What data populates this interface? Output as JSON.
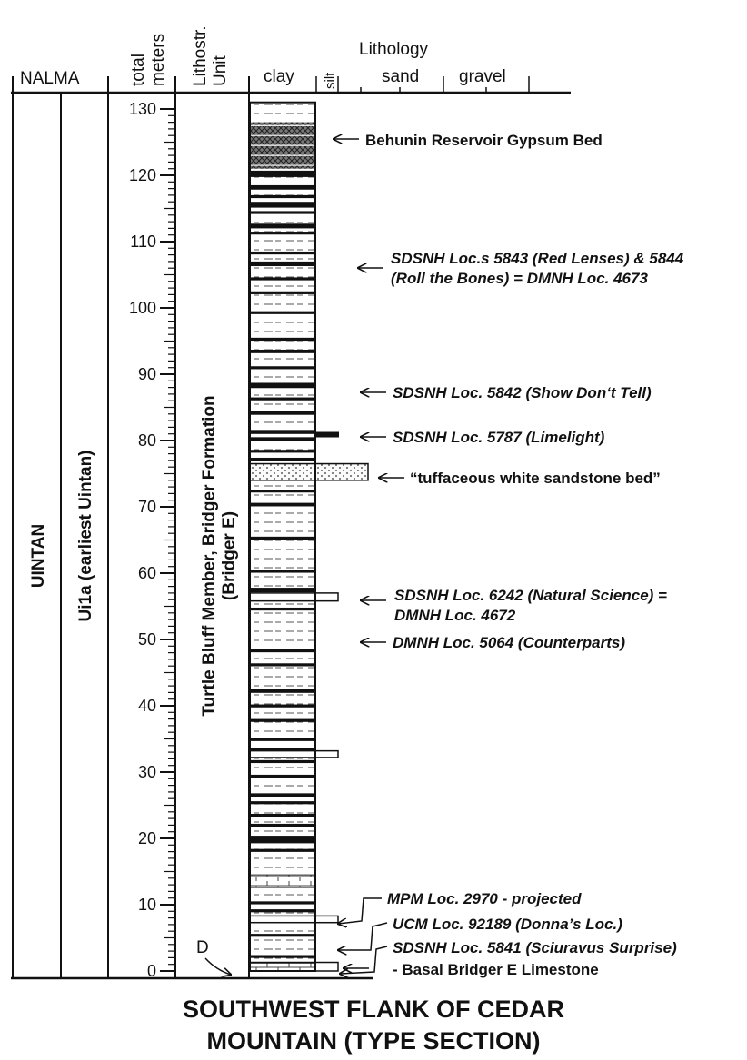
{
  "header": {
    "nalma": "NALMA",
    "total_meters_line1": "total",
    "total_meters_line2": "meters",
    "lithostr_line1": "Lithostr.",
    "lithostr_line2": "Unit",
    "lithology": "Lithology",
    "clay": "clay",
    "silt": "silt",
    "sand": "sand",
    "gravel": "gravel"
  },
  "columns": {
    "nalma_value": "UINTAN",
    "subunit_value": "Ui1a (earliest Uintan)",
    "formation_line1": "Turtle Bluff Member, Bridger Formation",
    "formation_line2": "(Bridger E)"
  },
  "scale": {
    "min": 0,
    "max": 130,
    "labels": [
      "0",
      "10",
      "20",
      "30",
      "40",
      "50",
      "60",
      "70",
      "80",
      "90",
      "100",
      "110",
      "120",
      "130"
    ]
  },
  "marker_d": "D",
  "annotations": [
    {
      "line1": "Behunin Reservoir Gypsum Bed",
      "line2": "",
      "italic": false,
      "meters": 124
    },
    {
      "line1": "SDSNH Loc.s 5843 (Red Lenses) & 5844",
      "line2": "(Roll the Bones) = DMNH Loc. 4673",
      "italic": true,
      "meters": 106
    },
    {
      "line1": "SDSNH Loc. 5842 (Show Don‘t Tell)",
      "line2": "",
      "italic": true,
      "meters": 87.5
    },
    {
      "line1": "SDSNH Loc. 5787 (Limelight)",
      "line2": "",
      "italic": true,
      "meters": 81
    },
    {
      "line1": "“tuffaceous white sandstone bed”",
      "line2": "",
      "italic": false,
      "meters": 74.5
    },
    {
      "line1": "SDSNH Loc. 6242 (Natural Science) =",
      "line2": "DMNH Loc. 4672",
      "italic": true,
      "meters": 56
    },
    {
      "line1": "DMNH Loc. 5064 (Counterparts)",
      "line2": "",
      "italic": true,
      "meters": 50
    },
    {
      "line1": "MPM Loc. 2970 - projected",
      "line2": "",
      "italic": true,
      "meters": 12
    },
    {
      "line1": "UCM Loc. 92189 (Donna’s Loc.)",
      "line2": "",
      "italic": true,
      "meters": 7.5
    },
    {
      "line1": "SDSNH Loc. 5841 (Sciuravus Surprise)",
      "line2": "",
      "italic": true,
      "meters": 3.5
    },
    {
      "line1": "- Basal Bridger E Limestone",
      "line2": "",
      "italic": false,
      "meters": 0.5
    }
  ],
  "title": {
    "line1": "SOUTHWEST FLANK OF CEDAR",
    "line2": "MOUNTAIN (TYPE SECTION)"
  }
}
